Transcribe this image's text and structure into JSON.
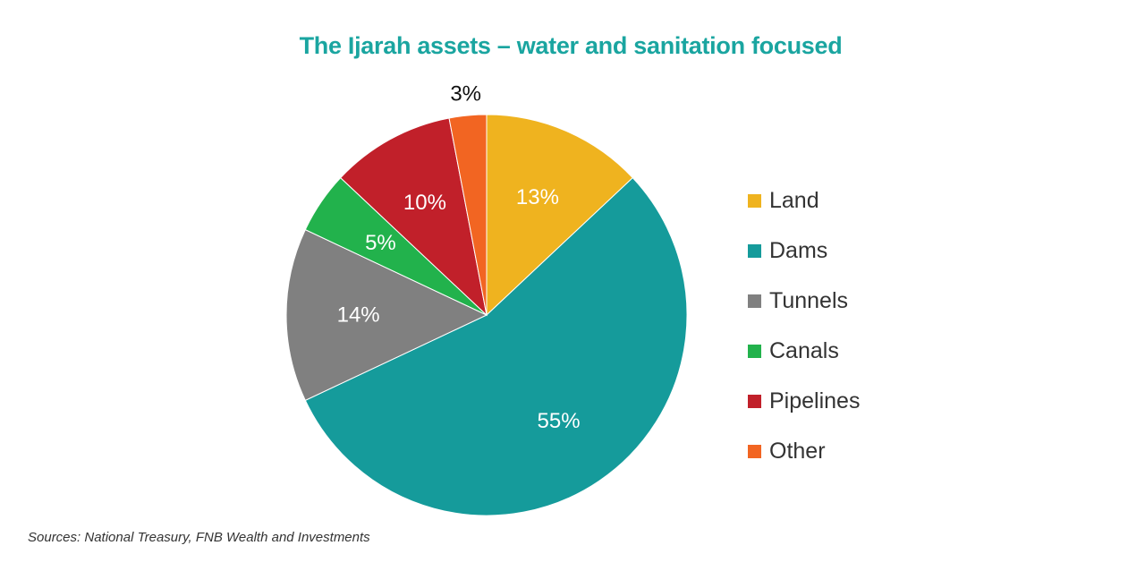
{
  "chart_data": {
    "type": "pie",
    "title": "The Ijarah assets – water and sanitation focused",
    "categories": [
      "Land",
      "Dams",
      "Tunnels",
      "Canals",
      "Pipelines",
      "Other"
    ],
    "values": [
      13,
      55,
      14,
      5,
      10,
      3
    ],
    "labels": [
      "13%",
      "55%",
      "14%",
      "5%",
      "10%",
      "3%"
    ],
    "colors": [
      "#efb31f",
      "#159b9b",
      "#808080",
      "#22b24c",
      "#c1202a",
      "#f26522"
    ],
    "start_angle_deg": 0,
    "direction": "clockwise",
    "legend_position": "right",
    "source": "Sources: National Treasury, FNB Wealth and Investments"
  },
  "style": {
    "title_color": "#1aa5a0",
    "outside_label_color": "#111111",
    "inside_label_color": "#ffffff"
  }
}
